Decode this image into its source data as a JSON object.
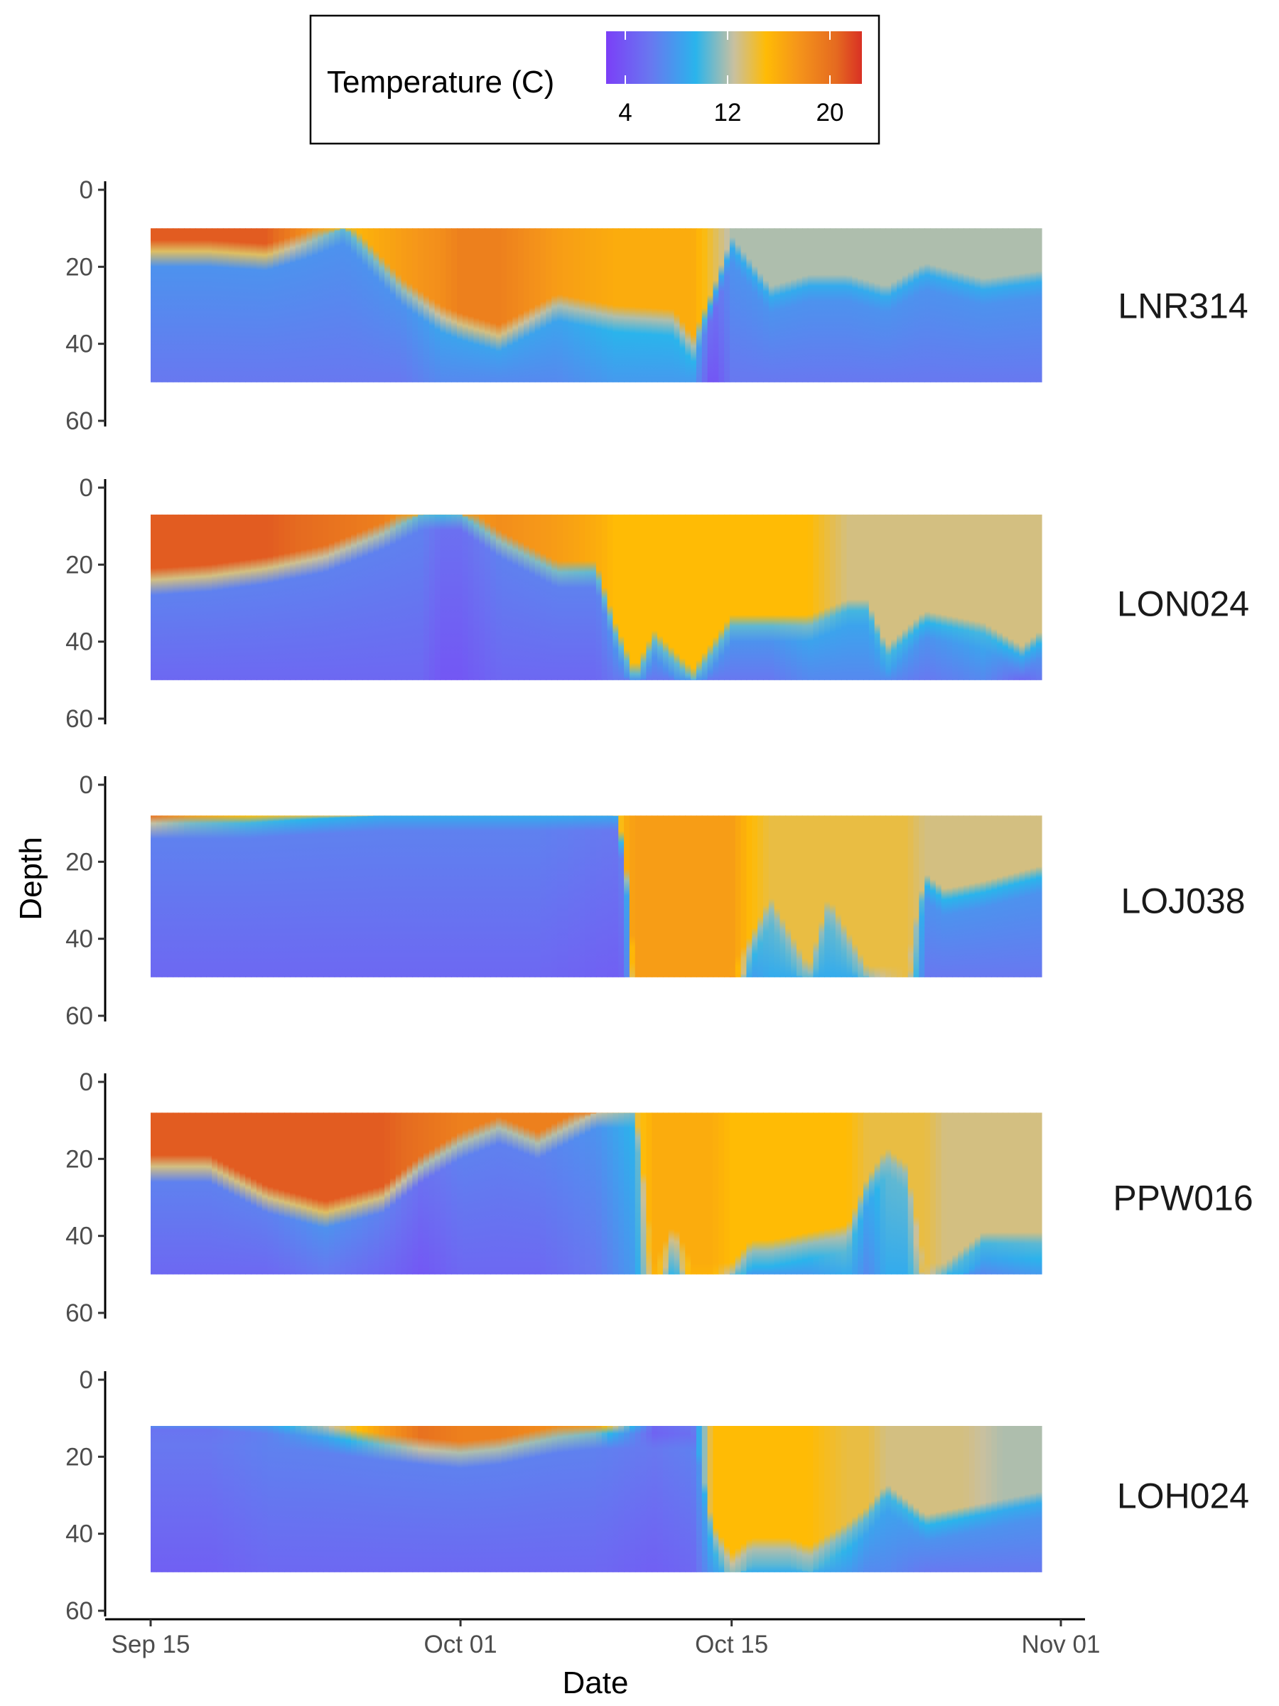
{
  "chart_data": {
    "type": "heatmap",
    "facet_by": "site",
    "xlabel": "Date",
    "ylabel": "Depth",
    "x_ticks": [
      {
        "date": "2023-09-15",
        "label": "Sep 15"
      },
      {
        "date": "2023-10-01",
        "label": "Oct 01"
      },
      {
        "date": "2023-10-15",
        "label": "Oct 15"
      },
      {
        "date": "2023-11-01",
        "label": "Nov 01"
      }
    ],
    "xlim": [
      "2023-09-15",
      "2023-11-01"
    ],
    "y_ticks": [
      0,
      20,
      40,
      60
    ],
    "ylim": [
      0,
      60
    ],
    "y_reversed": true,
    "grid": false,
    "legend": {
      "title": "Temperature (C)",
      "position": "top",
      "ticks": [
        4,
        12,
        20
      ],
      "range": [
        2.5,
        22.5
      ],
      "colors": [
        {
          "value": 2.5,
          "color": "#7b3ff7"
        },
        {
          "value": 6,
          "color": "#6878f0"
        },
        {
          "value": 9.5,
          "color": "#2ab4ec"
        },
        {
          "value": 12.5,
          "color": "#c8c0a0"
        },
        {
          "value": 15,
          "color": "#ffbb05"
        },
        {
          "value": 17.5,
          "color": "#f5951a"
        },
        {
          "value": 20.5,
          "color": "#e56a20"
        },
        {
          "value": 22.5,
          "color": "#d93024"
        }
      ]
    },
    "panels": [
      {
        "site": "LNR314",
        "depth_range": [
          10,
          50
        ],
        "days": [
          0,
          3,
          6,
          8,
          10,
          13,
          15,
          16,
          18,
          21,
          24,
          27,
          28,
          29,
          30,
          32,
          34,
          36,
          38,
          40,
          43,
          46
        ],
        "thermocline_depth": [
          16,
          16,
          17,
          14,
          10,
          26,
          33,
          35,
          38,
          30,
          33,
          34,
          41,
          29,
          15,
          28,
          25,
          25,
          28,
          22,
          26,
          24
        ],
        "surface_temp": [
          21,
          21,
          21,
          18,
          15,
          17,
          18,
          19,
          19,
          17,
          16,
          16,
          16,
          14,
          12,
          12,
          12,
          12,
          12,
          12,
          12,
          12
        ],
        "bottom_temp": [
          6,
          6,
          6,
          6,
          6,
          6,
          7,
          7,
          7,
          7,
          8,
          8,
          8,
          3.5,
          6,
          6,
          6,
          6,
          6,
          6,
          6,
          6
        ]
      },
      {
        "site": "LON024",
        "depth_range": [
          7,
          50
        ],
        "days": [
          0,
          3,
          6,
          9,
          12,
          14,
          15,
          16,
          18,
          21,
          23,
          24,
          25,
          26,
          28,
          30,
          32,
          34,
          36,
          37,
          38,
          40,
          43,
          45,
          46
        ],
        "thermocline_depth": [
          24,
          23,
          21,
          18,
          12,
          7,
          7,
          7,
          14,
          22,
          22,
          38,
          50,
          40,
          50,
          36,
          36,
          36,
          32,
          32,
          44,
          35,
          38,
          44,
          40
        ],
        "surface_temp": [
          21,
          21,
          21,
          20,
          19,
          16,
          16,
          17,
          18,
          17,
          16,
          15,
          15,
          15,
          15,
          15,
          15,
          15,
          13,
          13,
          13,
          13,
          13,
          13,
          13
        ],
        "bottom_temp": [
          5,
          5,
          5,
          5,
          5,
          5,
          4,
          4,
          5,
          5,
          5,
          6,
          6,
          6,
          6,
          6,
          6,
          7,
          7,
          7,
          7,
          6,
          7,
          5,
          6
        ]
      },
      {
        "site": "LOJ038",
        "depth_range": [
          8,
          50
        ],
        "days": [
          0,
          2,
          5,
          8,
          12,
          16,
          20,
          24,
          24.5,
          25,
          27,
          30,
          31,
          32,
          34,
          35,
          37,
          38,
          39,
          40,
          41,
          43,
          46
        ],
        "thermocline_depth": [
          10,
          10,
          10,
          9,
          8,
          8,
          8,
          8,
          20,
          50,
          50,
          50,
          42,
          32,
          50,
          32,
          50,
          50,
          50,
          26,
          30,
          28,
          24
        ],
        "surface_temp": [
          20,
          17,
          15,
          14,
          13,
          13,
          13,
          13,
          16,
          17,
          17,
          17,
          15,
          14,
          14,
          14,
          14,
          14,
          14,
          13,
          13,
          13,
          13
        ],
        "bottom_temp": [
          5,
          5,
          5,
          5,
          5,
          5,
          5,
          4.5,
          5,
          17,
          17,
          17,
          8,
          9,
          9,
          9,
          9,
          12,
          14,
          6,
          6,
          6,
          6
        ]
      },
      {
        "site": "PPW016",
        "depth_range": [
          8,
          50
        ],
        "days": [
          0,
          3,
          6,
          9,
          12,
          14,
          16,
          18,
          20,
          23,
          25,
          26,
          27,
          28,
          29,
          30,
          31,
          32,
          34,
          36,
          37,
          38,
          39,
          40,
          41,
          43,
          46
        ],
        "thermocline_depth": [
          22,
          22,
          30,
          34,
          30,
          22,
          16,
          12,
          16,
          8,
          8,
          50,
          40,
          50,
          50,
          50,
          44,
          44,
          42,
          40,
          28,
          20,
          24,
          50,
          50,
          42,
          42
        ],
        "surface_temp": [
          21,
          21,
          21,
          21,
          21,
          20,
          19,
          19,
          19,
          19,
          14,
          16,
          16,
          16,
          16,
          15,
          15,
          15,
          15,
          15,
          14,
          14,
          14,
          14,
          13,
          13,
          13
        ],
        "bottom_temp": [
          5,
          5,
          5,
          6,
          5,
          4,
          5,
          5,
          5,
          6,
          8,
          15,
          9,
          15,
          15,
          9,
          8,
          8,
          8,
          9,
          7,
          9,
          9,
          13,
          8,
          7,
          8
        ]
      },
      {
        "site": "LOH024",
        "depth_range": [
          12,
          50
        ],
        "days": [
          0,
          3,
          6,
          9,
          12,
          14,
          16,
          18,
          21,
          23,
          26,
          28,
          29,
          30,
          31,
          32,
          33,
          34,
          36,
          37,
          38,
          40,
          42,
          44,
          46
        ],
        "thermocline_depth": [
          13,
          13,
          14,
          15,
          17,
          18,
          19,
          18,
          15,
          14,
          14,
          14,
          40,
          48,
          44,
          44,
          44,
          46,
          40,
          36,
          30,
          38,
          36,
          34,
          32
        ],
        "surface_temp": [
          7,
          7,
          8,
          12,
          17,
          20,
          19,
          19,
          18,
          17,
          5,
          6,
          15,
          15,
          15,
          15,
          15,
          15,
          14,
          14,
          13,
          13,
          13,
          12,
          12
        ],
        "bottom_temp": [
          4.5,
          4.5,
          5,
          5,
          5,
          5,
          5,
          5,
          5,
          5,
          4.5,
          5,
          8,
          10,
          9,
          9,
          9,
          9,
          8,
          7,
          7,
          6,
          6,
          6,
          6
        ]
      }
    ]
  }
}
